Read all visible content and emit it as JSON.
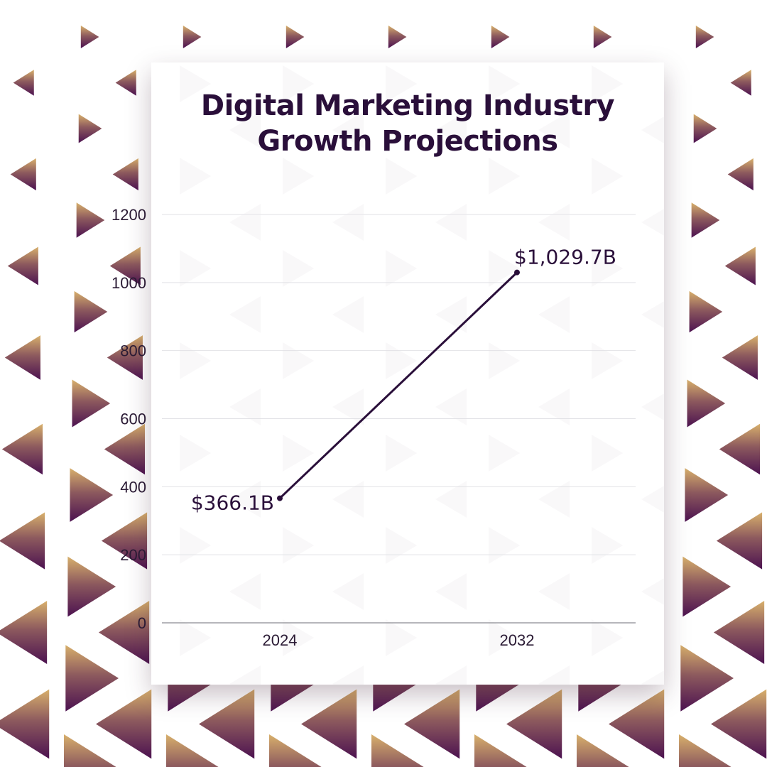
{
  "chart_data": {
    "type": "line",
    "title_lines": [
      "Digital Marketing Industry",
      "Growth Projections"
    ],
    "categories": [
      "2024",
      "2032"
    ],
    "series": [
      {
        "values": [
          366.1,
          1029.7
        ],
        "labels": [
          "$366.1B",
          "$1,029.7B"
        ],
        "color": "#2a0f3a"
      }
    ],
    "yticks": [
      "0",
      "200",
      "400",
      "600",
      "800",
      "1000",
      "1200"
    ],
    "ylim": [
      0,
      1200
    ],
    "grid": true,
    "xlabel": "",
    "ylabel": ""
  },
  "colors": {
    "accent_gold": "#d4aa6a",
    "accent_purple": "#4f1553",
    "line": "#2a0f3a",
    "grid": "#e2e2e6"
  }
}
